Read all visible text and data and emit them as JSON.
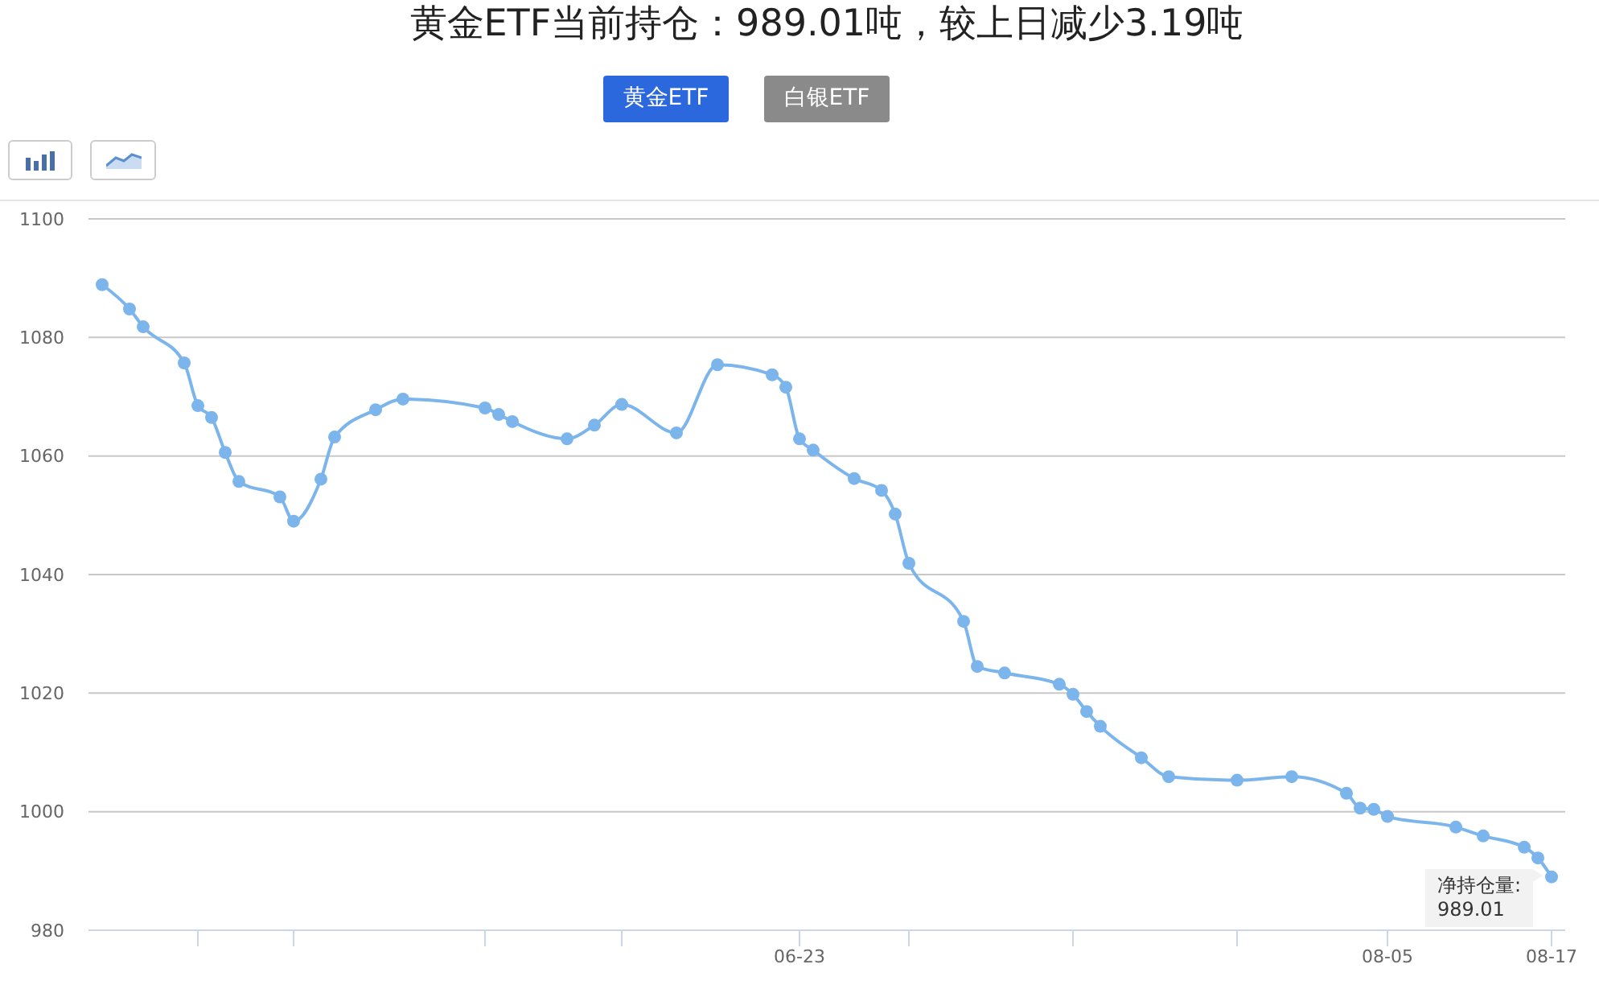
{
  "chart_data": {
    "type": "line",
    "title": "黄金ETF当前持仓：989.01吨，较上日减少3.19吨",
    "annotations": [
      "黄金ETF",
      "白银ETF",
      {
        "text": "净持仓量:\n989.01",
        "x": "--08-17",
        "y": 989.01
      }
    ],
    "x": [
      "--05-03",
      "--05-05",
      "--05-06",
      "--05-09",
      "--05-10",
      "--05-11",
      "--05-12",
      "--05-13",
      "--05-16",
      "--05-17",
      "--05-19",
      "--05-20",
      "--05-23",
      "--05-25",
      "--05-31",
      "--06-01",
      "--06-02",
      "--06-06",
      "--06-08",
      "--06-10",
      "--06-14",
      "--06-17",
      "--06-21",
      "--06-22",
      "--06-23",
      "--06-24",
      "--06-27",
      "--06-29",
      "--06-30",
      "--07-01",
      "--07-05",
      "--07-06",
      "--07-08",
      "--07-12",
      "--07-13",
      "--07-14",
      "--07-15",
      "--07-18",
      "--07-20",
      "--07-25",
      "--07-29",
      "--08-02",
      "--08-03",
      "--08-04",
      "--08-05",
      "--08-10",
      "--08-12",
      "--08-15",
      "--08-16",
      "--08-17"
    ],
    "series": [
      {
        "color": "#7cb5ec",
        "values": [
          1088.9,
          1084.8,
          1081.8,
          1075.7,
          1068.5,
          1066.5,
          1060.6,
          1055.7,
          1053.1,
          1049.0,
          1056.1,
          1063.2,
          1067.8,
          1069.6,
          1068.1,
          1067.0,
          1065.8,
          1062.9,
          1065.2,
          1068.7,
          1063.9,
          1075.4,
          1073.7,
          1071.6,
          1062.9,
          1061.0,
          1056.2,
          1054.2,
          1050.2,
          1041.9,
          1032.1,
          1024.5,
          1023.4,
          1021.5,
          1019.8,
          1016.9,
          1014.4,
          1009.1,
          1005.9,
          1005.3,
          1005.9,
          1003.1,
          1000.6,
          1000.4,
          999.2,
          997.4,
          995.9,
          994.0,
          992.2,
          989.01
        ]
      }
    ],
    "xlim": [
      "--05-02",
      "--08-18"
    ],
    "xticks": [
      {
        "value": "--05-10",
        "label": null
      },
      {
        "value": "--05-17",
        "label": null
      },
      {
        "value": "--05-31",
        "label": null
      },
      {
        "value": "--06-10",
        "label": null
      },
      {
        "value": "--06-23",
        "label": "06-23"
      },
      {
        "value": "--07-01",
        "label": null
      },
      {
        "value": "--07-13",
        "label": null
      },
      {
        "value": "--07-25",
        "label": null
      },
      {
        "value": "--08-05",
        "label": "08-05"
      },
      {
        "value": "--08-17",
        "label": "08-17"
      }
    ],
    "ylim": [
      980,
      1100
    ],
    "yticks": [
      980,
      1000,
      1020,
      1040,
      1060,
      1080,
      1100
    ],
    "grid": "y",
    "marker": "circle"
  }
}
